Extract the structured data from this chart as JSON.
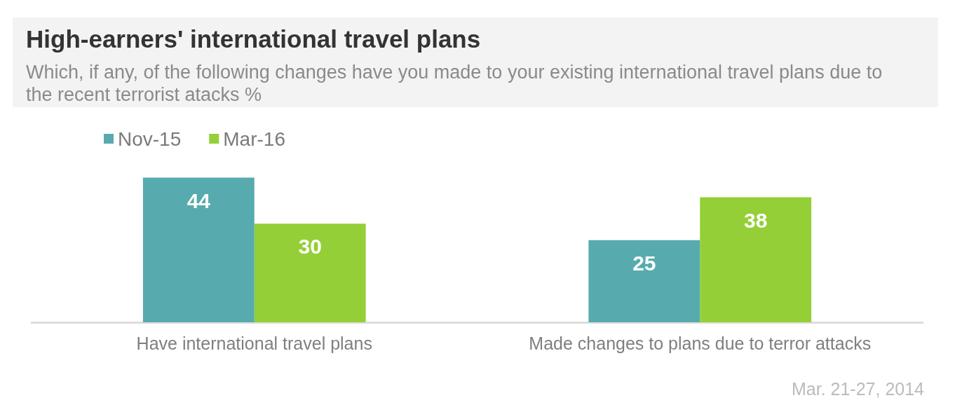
{
  "chart_data": {
    "type": "bar",
    "title": "High-earners' international travel plans",
    "subtitle": "Which, if any, of the following changes have you made to your existing international travel plans due to the recent terrorist atacks %",
    "categories": [
      "Have international travel plans",
      "Made changes to plans due to terror attacks"
    ],
    "series": [
      {
        "name": "Nov-15",
        "color": "#57abae",
        "values": [
          44,
          25
        ]
      },
      {
        "name": "Mar-16",
        "color": "#95cf37",
        "values": [
          30,
          38
        ]
      }
    ],
    "data_labels": true,
    "legend": "top left",
    "annotations": [
      "Mar. 21-27, 2014"
    ]
  }
}
